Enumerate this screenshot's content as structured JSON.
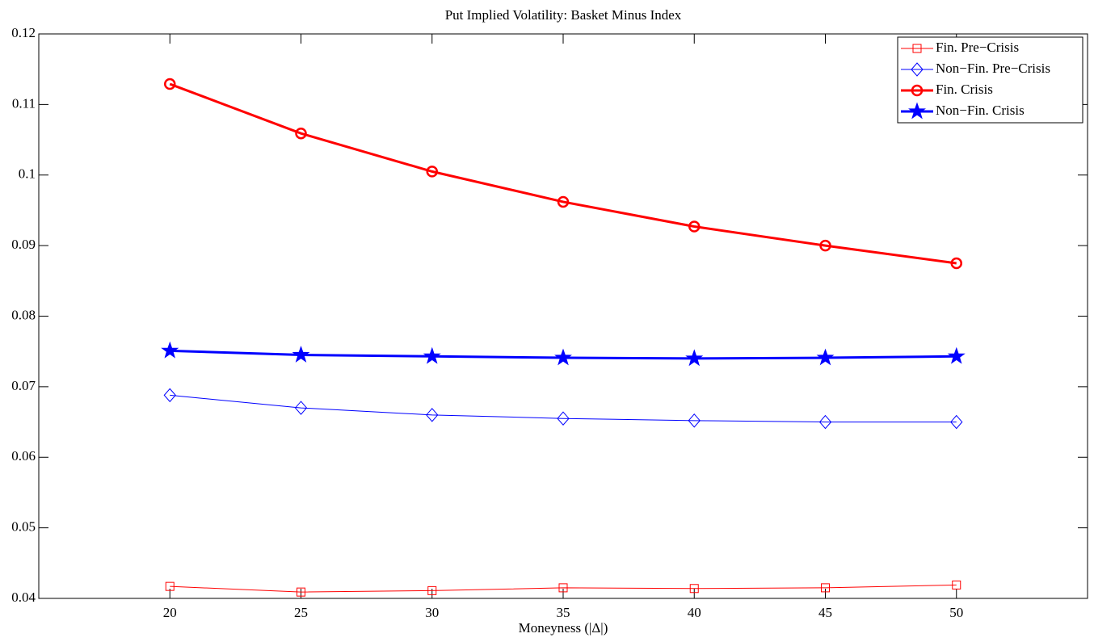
{
  "chart_data": {
    "type": "line",
    "title": "Put Implied Volatility: Basket Minus Index",
    "x_label": "Moneyness (|Δ|)",
    "x": [
      20,
      25,
      30,
      35,
      40,
      45,
      50
    ],
    "xlim": [
      15,
      55
    ],
    "xticks": [
      20,
      25,
      30,
      35,
      40,
      45,
      50
    ],
    "ylim": [
      0.04,
      0.12
    ],
    "yticks": [
      0.04,
      0.05,
      0.06,
      0.07,
      0.08,
      0.09,
      0.1,
      0.11,
      0.12
    ],
    "legend": "northeast",
    "series": [
      {
        "name": "Fin. Pre−Crisis",
        "color": "#ff0000",
        "marker": "square",
        "line_width": 1,
        "values": [
          0.0417,
          0.0409,
          0.0411,
          0.0415,
          0.0414,
          0.0415,
          0.0419
        ]
      },
      {
        "name": "Non−Fin. Pre−Crisis",
        "color": "#0000ff",
        "marker": "diamond",
        "line_width": 1,
        "values": [
          0.0688,
          0.067,
          0.066,
          0.0655,
          0.0652,
          0.065,
          0.065
        ]
      },
      {
        "name": "Fin. Crisis",
        "color": "#ff0000",
        "marker": "circle",
        "line_width": 3,
        "values": [
          0.1129,
          0.1059,
          0.1005,
          0.0962,
          0.0927,
          0.09,
          0.0875
        ]
      },
      {
        "name": "Non−Fin. Crisis",
        "color": "#0000ff",
        "marker": "star",
        "line_width": 3,
        "values": [
          0.0751,
          0.0745,
          0.0743,
          0.0741,
          0.074,
          0.0741,
          0.0743
        ]
      }
    ]
  }
}
